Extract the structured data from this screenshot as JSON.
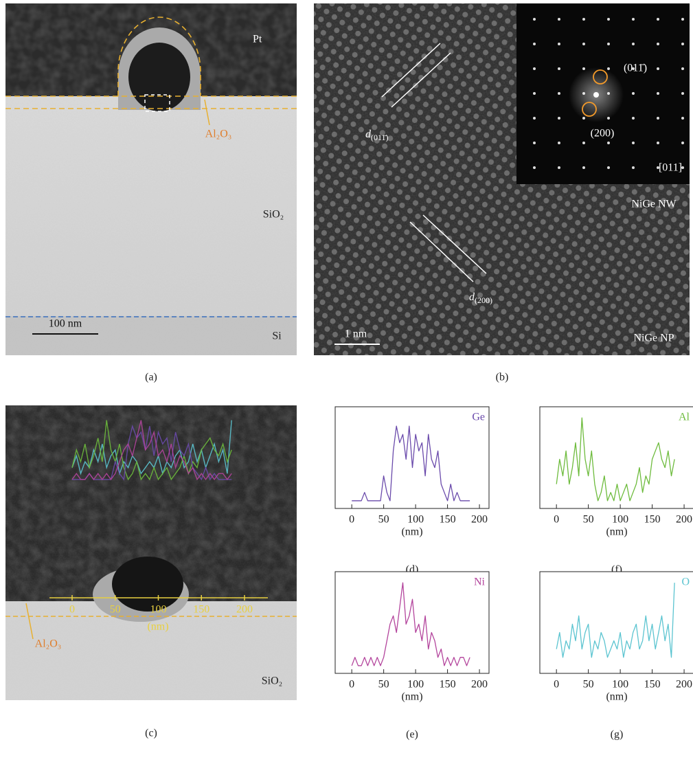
{
  "figure": {
    "panel_a": {
      "caption": "(a)",
      "pt": "Pt",
      "al2o3": "Al₂O₃",
      "sio2": "SiO₂",
      "si": "Si",
      "scale": "100 nm"
    },
    "panel_b": {
      "caption": "(b)",
      "spot1": "(011̄)",
      "spot2": "(200)",
      "zone": "[011]",
      "nw": "NiGe NW",
      "np": "NiGe NP",
      "scale": "1 nm",
      "d1": {
        "symbol": "d",
        "index": "(011̄)"
      },
      "d2": {
        "symbol": "d",
        "index": "(200)"
      }
    },
    "panel_c": {
      "caption": "(c)",
      "al2o3": "Al₂O₃",
      "sio2": "SiO₂",
      "xlabel": "(nm)",
      "xticks": [
        0,
        50,
        100,
        150,
        200
      ]
    }
  },
  "chart_data": [
    {
      "type": "line",
      "label": "Ge",
      "caption": "(d)",
      "color": "#6a4aab",
      "xlabel": "(nm)",
      "x": [
        0,
        5,
        10,
        15,
        20,
        25,
        30,
        35,
        40,
        45,
        50,
        55,
        60,
        65,
        70,
        75,
        80,
        85,
        90,
        95,
        100,
        105,
        110,
        115,
        120,
        125,
        130,
        135,
        140,
        145,
        150,
        155,
        160,
        165,
        170,
        175,
        180,
        185
      ],
      "values": [
        0,
        0,
        0,
        0,
        1,
        0,
        0,
        0,
        0,
        0,
        3,
        1,
        0,
        6,
        9,
        7,
        8,
        5,
        9,
        4,
        8,
        6,
        7,
        3,
        8,
        5,
        4,
        6,
        2,
        1,
        0,
        2,
        0,
        1,
        0,
        0,
        0,
        0
      ],
      "xlim": [
        -26,
        215
      ],
      "ylim": [
        -0.6,
        11
      ],
      "xticks": [
        0,
        50,
        100,
        150,
        200
      ]
    },
    {
      "type": "line",
      "label": "Ni",
      "caption": "(e)",
      "color": "#b3449c",
      "xlabel": "(nm)",
      "x": [
        0,
        5,
        10,
        15,
        20,
        25,
        30,
        35,
        40,
        45,
        50,
        55,
        60,
        65,
        70,
        75,
        80,
        85,
        90,
        95,
        100,
        105,
        110,
        115,
        120,
        125,
        130,
        135,
        140,
        145,
        150,
        155,
        160,
        165,
        170,
        175,
        180,
        185
      ],
      "values": [
        0,
        1,
        0,
        0,
        1,
        0,
        1,
        0,
        1,
        0,
        1,
        3,
        5,
        6,
        4,
        7,
        10,
        5,
        6,
        8,
        4,
        5,
        3,
        6,
        2,
        4,
        3,
        1,
        2,
        0,
        1,
        0,
        1,
        0,
        1,
        1,
        0,
        1
      ],
      "xlim": [
        -26,
        215
      ],
      "ylim": [
        -0.6,
        11
      ],
      "xticks": [
        0,
        50,
        100,
        150,
        200
      ]
    },
    {
      "type": "line",
      "label": "Al",
      "caption": "(f)",
      "color": "#6dbb3c",
      "xlabel": "(nm)",
      "x": [
        0,
        5,
        10,
        15,
        20,
        25,
        30,
        35,
        40,
        45,
        50,
        55,
        60,
        65,
        70,
        75,
        80,
        85,
        90,
        95,
        100,
        105,
        110,
        115,
        120,
        125,
        130,
        135,
        140,
        145,
        150,
        155,
        160,
        165,
        170,
        175,
        180,
        185
      ],
      "values": [
        2,
        5,
        3,
        6,
        2,
        4,
        7,
        3,
        10,
        5,
        3,
        6,
        2,
        0,
        1,
        3,
        0,
        1,
        0,
        2,
        0,
        1,
        2,
        0,
        1,
        2,
        4,
        1,
        3,
        2,
        5,
        6,
        7,
        5,
        4,
        6,
        3,
        5
      ],
      "xlim": [
        -26,
        215
      ],
      "ylim": [
        -0.6,
        11
      ],
      "xticks": [
        0,
        50,
        100,
        150,
        200
      ]
    },
    {
      "type": "line",
      "label": "O",
      "caption": "(g)",
      "color": "#5bc4d0",
      "xlabel": "(nm)",
      "x": [
        0,
        5,
        10,
        15,
        20,
        25,
        30,
        35,
        40,
        45,
        50,
        55,
        60,
        65,
        70,
        75,
        80,
        85,
        90,
        95,
        100,
        105,
        110,
        115,
        120,
        125,
        130,
        135,
        140,
        145,
        150,
        155,
        160,
        165,
        170,
        175,
        180,
        185
      ],
      "values": [
        2,
        4,
        1,
        3,
        2,
        5,
        3,
        6,
        2,
        4,
        5,
        1,
        3,
        2,
        4,
        3,
        1,
        2,
        3,
        2,
        4,
        1,
        3,
        2,
        4,
        5,
        2,
        3,
        6,
        3,
        5,
        2,
        4,
        6,
        3,
        5,
        1,
        10
      ],
      "xlim": [
        -26,
        215
      ],
      "ylim": [
        -0.6,
        11
      ],
      "xticks": [
        0,
        50,
        100,
        150,
        200
      ]
    }
  ]
}
